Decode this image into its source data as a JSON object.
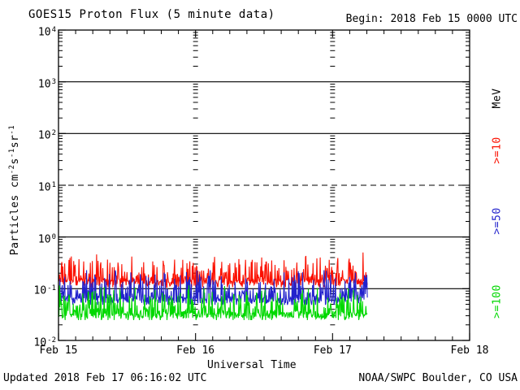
{
  "header": {
    "title": "GOES15 Proton Flux (5 minute data)",
    "begin": "Begin: 2018 Feb 15 0000 UTC"
  },
  "footer": {
    "updated": "Updated 2018 Feb 17 06:16:02 UTC",
    "credit": "NOAA/SWPC Boulder, CO USA"
  },
  "chart_data": {
    "type": "line",
    "title": "GOES15 Proton Flux (5 minute data)",
    "xlabel": "Universal Time",
    "ylabel_segments": [
      {
        "text": "Particles cm"
      },
      {
        "sup": "-2"
      },
      {
        "text": "s"
      },
      {
        "sup": "-1"
      },
      {
        "text": "sr"
      },
      {
        "sup": "-1"
      }
    ],
    "x_ticks": [
      "Feb 15",
      "Feb 16",
      "Feb 17",
      "Feb 18"
    ],
    "x_span_days": 3,
    "x_minor_tick_hours": 3,
    "y_scale": "log",
    "y_exponents": [
      4,
      3,
      2,
      1,
      0,
      -1,
      -2
    ],
    "ylim": [
      0.01,
      10000
    ],
    "solid_gridlines": [
      1000,
      100,
      1,
      0.1
    ],
    "dashed_gridlines": [
      10
    ],
    "grid": true,
    "legend_position": "right-vertical",
    "legend_title": {
      "label": "MeV",
      "color": "#000000"
    },
    "cadence_minutes": 5,
    "data_start": "2018 Feb 15 0000 UTC",
    "data_end_approx": "2018 Feb 17 0615 UTC",
    "data_duration_days": 2.26,
    "series": [
      {
        "name": ">=10 MeV proton flux",
        "legend_label": ">=10",
        "color": "#fb1000",
        "approx_baseline": 0.13,
        "approx_min": 0.09,
        "approx_max": 0.5,
        "floor": 0.112,
        "spread_log": 0.5,
        "approx_6h_levels": [
          0.13,
          0.13,
          0.14,
          0.13,
          0.13,
          0.14,
          0.13,
          0.13,
          0.14,
          0.13
        ]
      },
      {
        "name": ">=50 MeV proton flux",
        "legend_label": ">=50",
        "color": "#2222cc",
        "approx_baseline": 0.07,
        "approx_min": 0.045,
        "approx_max": 0.2,
        "floor": 0.051,
        "spread_log": 0.56,
        "approx_6h_levels": [
          0.07,
          0.07,
          0.07,
          0.07,
          0.07,
          0.07,
          0.07,
          0.07,
          0.07,
          0.07
        ]
      },
      {
        "name": ">=100 MeV proton flux",
        "legend_label": ">=100",
        "color": "#00d800",
        "approx_baseline": 0.035,
        "approx_min": 0.022,
        "approx_max": 0.11,
        "floor": 0.026,
        "spread_log": 0.55,
        "approx_6h_levels": [
          0.035,
          0.035,
          0.035,
          0.035,
          0.035,
          0.035,
          0.035,
          0.035,
          0.035,
          0.035
        ]
      }
    ]
  }
}
